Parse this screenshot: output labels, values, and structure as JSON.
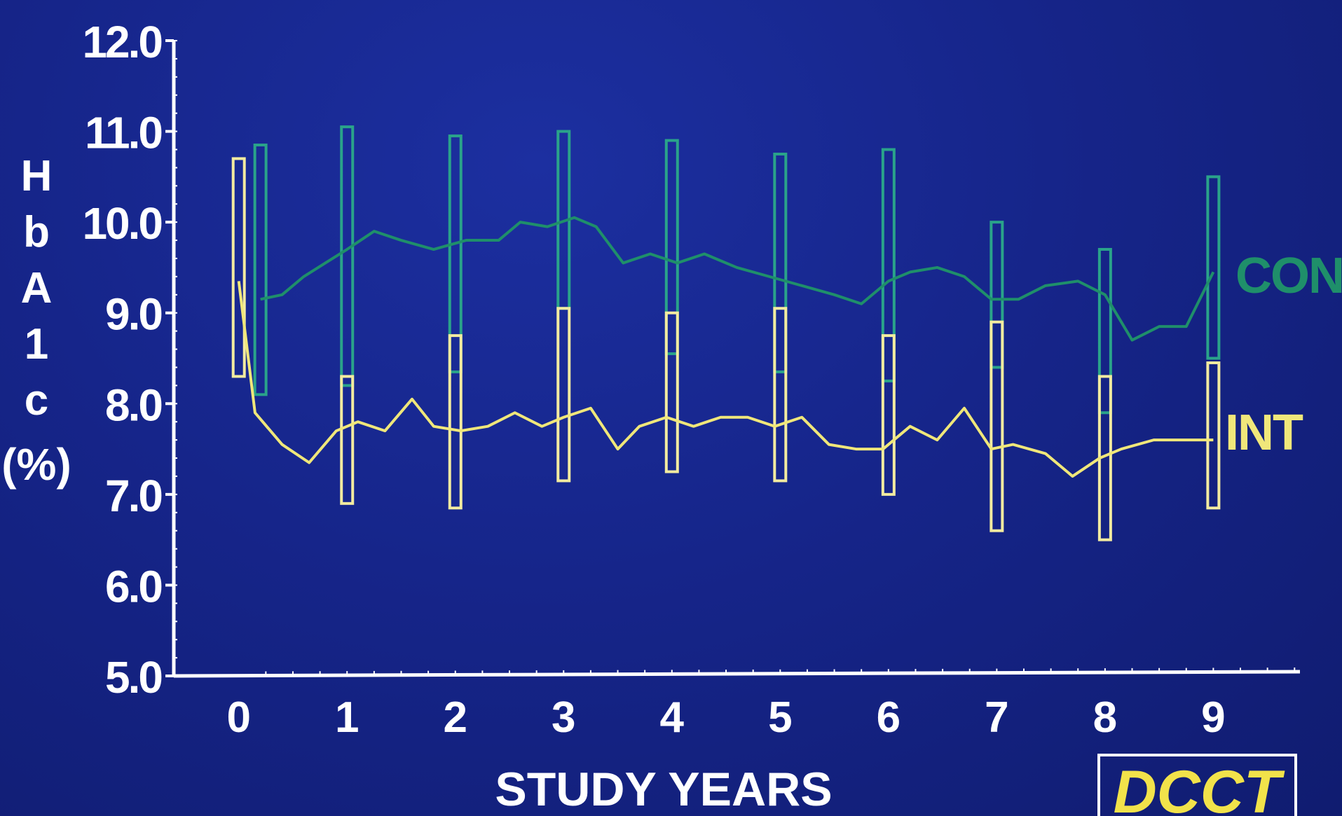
{
  "chart_data": {
    "type": "line",
    "title": "",
    "xlabel": "STUDY YEARS",
    "ylabel": "HbA1c (%)",
    "ylabel_chars": [
      "H",
      "b",
      "A",
      "1",
      "c",
      "(%)"
    ],
    "xlim": [
      -0.6,
      9.8
    ],
    "ylim": [
      5.0,
      12.0
    ],
    "x_ticks": [
      0,
      1,
      2,
      3,
      4,
      5,
      6,
      7,
      8,
      9
    ],
    "x_tick_labels": [
      "0",
      "1",
      "2",
      "3",
      "4",
      "5",
      "6",
      "7",
      "8",
      "9"
    ],
    "y_ticks": [
      5,
      6,
      7,
      8,
      9,
      10,
      11,
      12
    ],
    "y_tick_labels": [
      "5.0",
      "6.0",
      "7.0",
      "8.0",
      "9.0",
      "10.0",
      "11.0",
      "12.0"
    ],
    "grid": false,
    "legend": "inline-right",
    "series": [
      {
        "name": "CON",
        "color": "#1f8f6a",
        "box_color": "#2aa38a",
        "x": [
          0.2,
          0.4,
          0.6,
          0.8,
          1.0,
          1.25,
          1.5,
          1.8,
          2.1,
          2.4,
          2.6,
          2.85,
          3.1,
          3.3,
          3.55,
          3.8,
          4.05,
          4.3,
          4.6,
          4.9,
          5.2,
          5.5,
          5.75,
          6.0,
          6.2,
          6.45,
          6.7,
          6.95,
          7.2,
          7.45,
          7.75,
          8.0,
          8.25,
          8.5,
          8.75,
          9.0
        ],
        "y": [
          9.15,
          9.2,
          9.4,
          9.55,
          9.7,
          9.9,
          9.8,
          9.7,
          9.8,
          9.8,
          10.0,
          9.95,
          10.05,
          9.95,
          9.55,
          9.65,
          9.55,
          9.65,
          9.5,
          9.4,
          9.3,
          9.2,
          9.1,
          9.35,
          9.45,
          9.5,
          9.4,
          9.15,
          9.15,
          9.3,
          9.35,
          9.2,
          8.7,
          8.85,
          8.85,
          9.45
        ],
        "boxes": [
          {
            "x": 0.2,
            "low": 8.1,
            "high": 10.85
          },
          {
            "x": 1.0,
            "low": 8.2,
            "high": 11.05
          },
          {
            "x": 2.0,
            "low": 8.35,
            "high": 10.95
          },
          {
            "x": 3.0,
            "low": 9.05,
            "high": 11.0
          },
          {
            "x": 4.0,
            "low": 8.55,
            "high": 10.9
          },
          {
            "x": 5.0,
            "low": 8.35,
            "high": 10.75
          },
          {
            "x": 6.0,
            "low": 8.25,
            "high": 10.8
          },
          {
            "x": 7.0,
            "low": 8.4,
            "high": 10.0
          },
          {
            "x": 8.0,
            "low": 7.9,
            "high": 9.7
          },
          {
            "x": 9.0,
            "low": 8.5,
            "high": 10.5
          }
        ]
      },
      {
        "name": "INT",
        "color": "#f0e77a",
        "box_color": "#f3eba0",
        "x": [
          0.0,
          0.15,
          0.4,
          0.65,
          0.9,
          1.1,
          1.35,
          1.6,
          1.8,
          2.05,
          2.3,
          2.55,
          2.8,
          3.0,
          3.25,
          3.5,
          3.7,
          3.95,
          4.2,
          4.45,
          4.7,
          4.95,
          5.2,
          5.45,
          5.7,
          5.95,
          6.2,
          6.45,
          6.7,
          6.95,
          7.15,
          7.45,
          7.7,
          7.95,
          8.15,
          8.45,
          8.75,
          9.0
        ],
        "y": [
          9.35,
          7.9,
          7.55,
          7.35,
          7.7,
          7.8,
          7.7,
          8.05,
          7.75,
          7.7,
          7.75,
          7.9,
          7.75,
          7.85,
          7.95,
          7.5,
          7.75,
          7.85,
          7.75,
          7.85,
          7.85,
          7.75,
          7.85,
          7.55,
          7.5,
          7.5,
          7.75,
          7.6,
          7.95,
          7.5,
          7.55,
          7.45,
          7.2,
          7.4,
          7.5,
          7.6,
          7.6,
          7.6
        ],
        "boxes": [
          {
            "x": 0.0,
            "low": 8.3,
            "high": 10.7
          },
          {
            "x": 1.0,
            "low": 6.9,
            "high": 8.3
          },
          {
            "x": 2.0,
            "low": 6.85,
            "high": 8.75
          },
          {
            "x": 3.0,
            "low": 7.15,
            "high": 9.05
          },
          {
            "x": 4.0,
            "low": 7.25,
            "high": 9.0
          },
          {
            "x": 5.0,
            "low": 7.15,
            "high": 9.05
          },
          {
            "x": 6.0,
            "low": 7.0,
            "high": 8.75
          },
          {
            "x": 7.0,
            "low": 6.6,
            "high": 8.9
          },
          {
            "x": 8.0,
            "low": 6.5,
            "high": 8.3
          },
          {
            "x": 9.0,
            "low": 6.85,
            "high": 8.45
          }
        ]
      }
    ]
  },
  "logo": {
    "text": "DCCT",
    "text_color": "#f2e24a",
    "border_color": "#ffffff"
  }
}
